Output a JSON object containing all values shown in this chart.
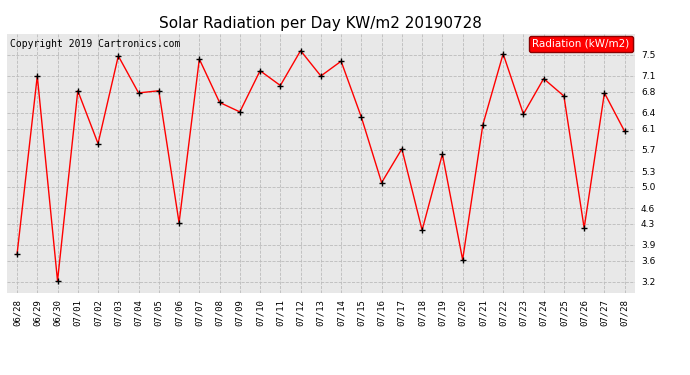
{
  "title": "Solar Radiation per Day KW/m2 20190728",
  "copyright": "Copyright 2019 Cartronics.com",
  "legend_label": "Radiation (kW/m2)",
  "dates": [
    "06/28",
    "06/29",
    "06/30",
    "07/01",
    "07/02",
    "07/03",
    "07/04",
    "07/05",
    "07/06",
    "07/07",
    "07/08",
    "07/09",
    "07/10",
    "07/11",
    "07/12",
    "07/13",
    "07/14",
    "07/15",
    "07/16",
    "07/17",
    "07/18",
    "07/19",
    "07/20",
    "07/21",
    "07/22",
    "07/23",
    "07/24",
    "07/25",
    "07/26",
    "07/27",
    "07/28"
  ],
  "values": [
    3.72,
    7.1,
    3.22,
    6.82,
    5.82,
    7.48,
    6.78,
    6.82,
    4.32,
    7.42,
    6.6,
    6.42,
    7.2,
    6.92,
    7.58,
    7.1,
    7.38,
    6.32,
    5.08,
    5.72,
    4.18,
    5.62,
    3.62,
    6.18,
    7.52,
    6.38,
    7.05,
    6.72,
    4.22,
    6.78,
    6.05
  ],
  "ylim": [
    3.0,
    7.9
  ],
  "yticks": [
    3.2,
    3.6,
    3.9,
    4.3,
    4.6,
    5.0,
    5.3,
    5.7,
    6.1,
    6.4,
    6.8,
    7.1,
    7.5
  ],
  "line_color": "red",
  "marker": "+",
  "marker_color": "black",
  "grid_color": "#bbbbbb",
  "bg_color": "#ffffff",
  "plot_bg_color": "#e8e8e8",
  "title_fontsize": 11,
  "tick_fontsize": 6.5,
  "legend_fontsize": 7.5,
  "copyright_fontsize": 7
}
